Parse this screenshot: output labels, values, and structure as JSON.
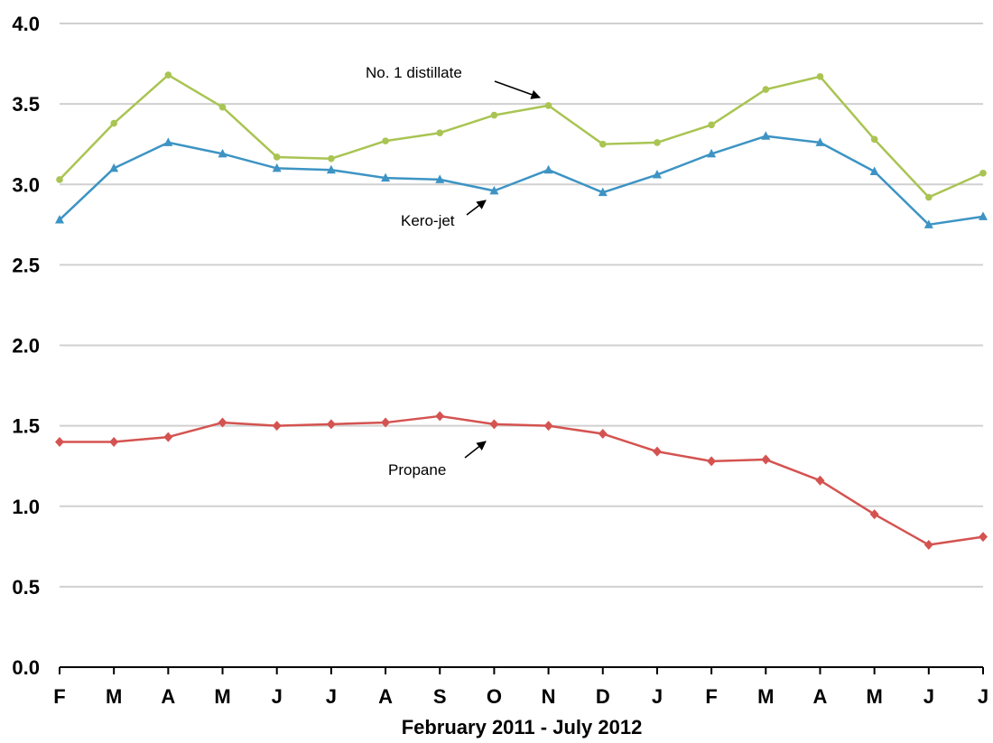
{
  "chart_data": {
    "type": "line",
    "title": "",
    "xlabel": "February 2011 - July 2012",
    "ylabel": "",
    "ylim": [
      0,
      4
    ],
    "yticks": [
      "0.0",
      "0.5",
      "1.0",
      "1.5",
      "2.0",
      "2.5",
      "3.0",
      "3.5",
      "4.0"
    ],
    "categories": [
      "F",
      "M",
      "A",
      "M",
      "J",
      "J",
      "A",
      "S",
      "O",
      "N",
      "D",
      "J",
      "F",
      "M",
      "A",
      "M",
      "J",
      "J"
    ],
    "grid": true,
    "legend": "none",
    "series": [
      {
        "name": "No. 1 distillate",
        "color": "#a9c452",
        "marker": "circle",
        "values": [
          3.03,
          3.38,
          3.68,
          3.48,
          3.17,
          3.16,
          3.27,
          3.32,
          3.43,
          3.49,
          3.25,
          3.26,
          3.37,
          3.59,
          3.67,
          3.28,
          2.92,
          3.07
        ]
      },
      {
        "name": "Kero-jet",
        "color": "#3d94c4",
        "marker": "triangle",
        "values": [
          2.78,
          3.1,
          3.26,
          3.19,
          3.1,
          3.09,
          3.04,
          3.03,
          2.96,
          3.09,
          2.95,
          3.06,
          3.19,
          3.3,
          3.26,
          3.08,
          2.75,
          2.8
        ]
      },
      {
        "name": "Propane",
        "color": "#d45350",
        "marker": "diamond",
        "values": [
          1.4,
          1.4,
          1.43,
          1.52,
          1.5,
          1.51,
          1.52,
          1.56,
          1.51,
          1.5,
          1.45,
          1.34,
          1.28,
          1.29,
          1.16,
          0.95,
          0.76,
          0.81
        ]
      }
    ],
    "annotations": [
      {
        "text": "No. 1 distillate",
        "series": "No. 1 distillate",
        "arrow_to_index": 9
      },
      {
        "text": "Kero-jet",
        "series": "Kero-jet",
        "arrow_to_index": 8
      },
      {
        "text": "Propane",
        "series": "Propane",
        "arrow_to_index": 8
      }
    ]
  }
}
